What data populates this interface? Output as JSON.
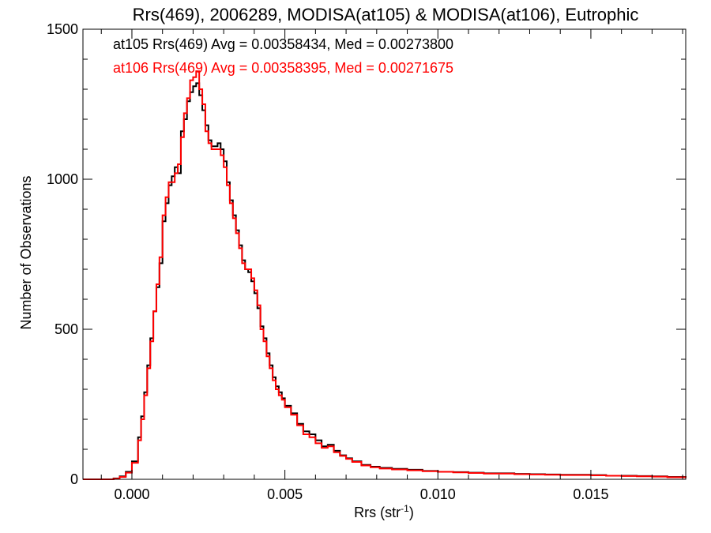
{
  "chart_data": {
    "type": "line",
    "title": "Rrs(469), 2006289, MODISA(at105) & MODISA(at106), Eutrophic",
    "xlabel": "Rrs (str",
    "xlabel_sup": "-1",
    "xlabel_close": ")",
    "ylabel": "Number of Observations",
    "xlim": [
      -0.0016,
      0.0181
    ],
    "ylim": [
      0,
      1500
    ],
    "x_ticks": [
      0.0,
      0.005,
      0.01,
      0.015
    ],
    "x_tick_labels": [
      "0.000",
      "0.005",
      "0.010",
      "0.015"
    ],
    "y_ticks": [
      0,
      500,
      1000,
      1500
    ],
    "y_tick_labels": [
      "0",
      "500",
      "1000",
      "1500"
    ],
    "grid": false,
    "legend_position": "top-left",
    "annotations": [
      {
        "text": "at105 Rrs(469) Avg = 0.00358434, Med = 0.00273800",
        "color": "#000000"
      },
      {
        "text": "at106 Rrs(469) Avg = 0.00358395, Med = 0.00271675",
        "color": "#ff0000"
      }
    ],
    "series": [
      {
        "color": "#000000",
        "x": [
          -0.0016,
          -0.001,
          -0.0006,
          -0.0004,
          -0.0002,
          0.0,
          0.0002,
          0.0003,
          0.0004,
          0.0005,
          0.0006,
          0.0007,
          0.0008,
          0.0009,
          0.001,
          0.0011,
          0.0012,
          0.0013,
          0.0014,
          0.0015,
          0.0016,
          0.0017,
          0.0018,
          0.0019,
          0.002,
          0.0021,
          0.0022,
          0.0023,
          0.0024,
          0.0025,
          0.0026,
          0.0027,
          0.0028,
          0.0029,
          0.003,
          0.0031,
          0.0032,
          0.0033,
          0.0034,
          0.0035,
          0.0036,
          0.0037,
          0.0038,
          0.0039,
          0.004,
          0.0041,
          0.0042,
          0.0043,
          0.0044,
          0.0045,
          0.0046,
          0.0047,
          0.0048,
          0.0049,
          0.005,
          0.0052,
          0.0054,
          0.0056,
          0.0058,
          0.006,
          0.0062,
          0.0064,
          0.0066,
          0.0068,
          0.007,
          0.0072,
          0.0075,
          0.0078,
          0.0081,
          0.0085,
          0.009,
          0.0095,
          0.01,
          0.0105,
          0.011,
          0.0115,
          0.012,
          0.0125,
          0.013,
          0.0135,
          0.014,
          0.0145,
          0.015,
          0.0155,
          0.016,
          0.0165,
          0.017,
          0.0175,
          0.0181
        ],
        "y": [
          0,
          0,
          3,
          10,
          25,
          60,
          140,
          210,
          290,
          380,
          470,
          560,
          640,
          720,
          860,
          920,
          980,
          1010,
          1040,
          1020,
          1160,
          1200,
          1260,
          1290,
          1310,
          1320,
          1280,
          1230,
          1180,
          1130,
          1110,
          1110,
          1120,
          1100,
          1060,
          990,
          930,
          880,
          830,
          780,
          730,
          700,
          690,
          660,
          620,
          570,
          510,
          470,
          420,
          380,
          340,
          310,
          290,
          270,
          245,
          220,
          185,
          160,
          150,
          130,
          110,
          115,
          95,
          80,
          70,
          60,
          48,
          42,
          38,
          35,
          32,
          28,
          25,
          24,
          22,
          20,
          20,
          18,
          17,
          16,
          15,
          15,
          14,
          12,
          12,
          11,
          10,
          8,
          5
        ]
      },
      {
        "color": "#ff0000",
        "x": [
          -0.0016,
          -0.001,
          -0.0006,
          -0.0004,
          -0.0002,
          0.0,
          0.0002,
          0.0003,
          0.0004,
          0.0005,
          0.0006,
          0.0007,
          0.0008,
          0.0009,
          0.001,
          0.0011,
          0.0012,
          0.0013,
          0.0014,
          0.0015,
          0.0016,
          0.0017,
          0.0018,
          0.0019,
          0.002,
          0.0021,
          0.0022,
          0.0023,
          0.0024,
          0.0025,
          0.0026,
          0.0027,
          0.0028,
          0.0029,
          0.003,
          0.0031,
          0.0032,
          0.0033,
          0.0034,
          0.0035,
          0.0036,
          0.0037,
          0.0038,
          0.0039,
          0.004,
          0.0041,
          0.0042,
          0.0043,
          0.0044,
          0.0045,
          0.0046,
          0.0047,
          0.0048,
          0.0049,
          0.005,
          0.0052,
          0.0054,
          0.0056,
          0.0058,
          0.006,
          0.0062,
          0.0064,
          0.0066,
          0.0068,
          0.007,
          0.0072,
          0.0075,
          0.0078,
          0.0081,
          0.0085,
          0.009,
          0.0095,
          0.01,
          0.0105,
          0.011,
          0.0115,
          0.012,
          0.0125,
          0.013,
          0.0135,
          0.014,
          0.0145,
          0.015,
          0.0155,
          0.016,
          0.0165,
          0.017,
          0.0175,
          0.0181
        ],
        "y": [
          0,
          0,
          2,
          8,
          22,
          55,
          130,
          200,
          280,
          370,
          460,
          560,
          650,
          740,
          880,
          940,
          990,
          990,
          1020,
          1050,
          1140,
          1220,
          1270,
          1330,
          1340,
          1360,
          1300,
          1250,
          1160,
          1120,
          1100,
          1100,
          1100,
          1080,
          1040,
          980,
          920,
          870,
          820,
          770,
          720,
          700,
          700,
          670,
          630,
          580,
          500,
          460,
          410,
          370,
          330,
          300,
          280,
          265,
          240,
          215,
          180,
          150,
          140,
          120,
          105,
          110,
          90,
          78,
          68,
          58,
          46,
          40,
          36,
          33,
          30,
          27,
          25,
          23,
          21,
          19,
          19,
          17,
          16,
          15,
          14,
          14,
          13,
          12,
          11,
          10,
          9,
          7,
          4
        ]
      }
    ]
  }
}
